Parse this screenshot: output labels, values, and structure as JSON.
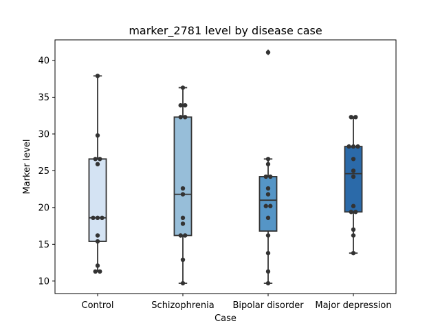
{
  "chart_data": {
    "type": "box",
    "title": "marker_2781 level by disease case",
    "xlabel": "Case",
    "ylabel": "Marker level",
    "ylim": [
      8.3,
      42.8
    ],
    "yticks": [
      10,
      15,
      20,
      25,
      30,
      35,
      40
    ],
    "grid": false,
    "categories": [
      "Control",
      "Schizophrenia",
      "Bipolar disorder",
      "Major depression"
    ],
    "colors": [
      "#d4e3f3",
      "#97bed9",
      "#5595c6",
      "#2b6aa9"
    ],
    "boxes": [
      {
        "category": "Control",
        "whisker_low": 11.3,
        "q1": 15.4,
        "median": 18.6,
        "q3": 26.6,
        "whisker_high": 37.9,
        "outliers": []
      },
      {
        "category": "Schizophrenia",
        "whisker_low": 9.7,
        "q1": 16.2,
        "median": 21.8,
        "q3": 32.3,
        "whisker_high": 36.3,
        "outliers": []
      },
      {
        "category": "Bipolar disorder",
        "whisker_low": 9.7,
        "q1": 16.8,
        "median": 21.0,
        "q3": 24.2,
        "whisker_high": 26.6,
        "outliers": [
          41.1
        ]
      },
      {
        "category": "Major depression",
        "whisker_low": 13.8,
        "q1": 19.4,
        "median": 24.6,
        "q3": 28.3,
        "whisker_high": 32.3,
        "outliers": []
      }
    ],
    "points": [
      [
        11.3,
        11.3,
        12.1,
        15.4,
        16.2,
        18.6,
        18.6,
        18.6,
        25.9,
        26.6,
        26.6,
        29.8,
        37.9
      ],
      [
        9.7,
        12.9,
        16.2,
        16.2,
        17.8,
        18.6,
        21.8,
        22.6,
        32.3,
        32.3,
        33.9,
        33.9,
        36.3
      ],
      [
        9.7,
        11.3,
        13.8,
        16.2,
        18.6,
        20.2,
        20.2,
        21.8,
        22.6,
        24.2,
        24.2,
        25.9,
        26.6,
        41.1
      ],
      [
        13.8,
        16.2,
        17.0,
        19.4,
        19.4,
        20.2,
        24.2,
        25.0,
        26.6,
        28.3,
        28.3,
        28.3,
        32.3,
        32.3
      ]
    ]
  }
}
